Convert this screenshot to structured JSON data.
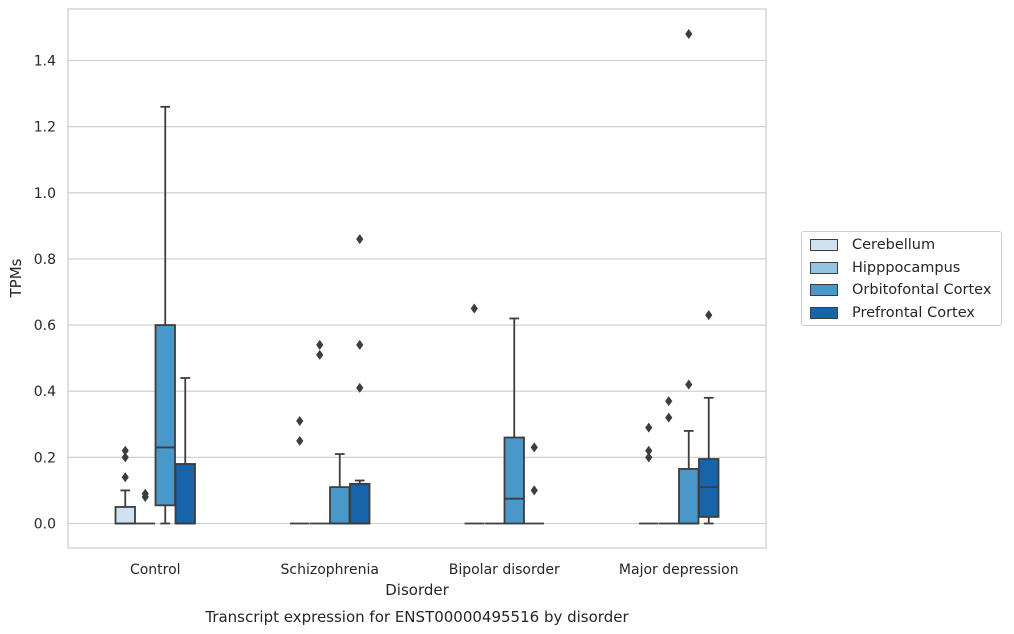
{
  "chart_data": {
    "type": "box",
    "caption": "Transcript expression for ENST00000495516 by disorder",
    "xlabel": "Disorder",
    "ylabel": "TPMs",
    "ylim": [
      -0.07,
      1.55
    ],
    "yticks": [
      0.0,
      0.2,
      0.4,
      0.6,
      0.8,
      1.0,
      1.2,
      1.4
    ],
    "ytick_labels": [
      "0.0",
      "0.2",
      "0.4",
      "0.6",
      "0.8",
      "1.0",
      "1.2",
      "1.4"
    ],
    "grid": "horizontal",
    "legend_placement": "right",
    "categories": [
      "Control",
      "Schizophrenia",
      "Bipolar disorder",
      "Major depression"
    ],
    "series": [
      {
        "name": "Cerebellum",
        "color": "#d0e1f2",
        "boxes": [
          {
            "q1": 0.0,
            "median": 0.0,
            "q3": 0.05,
            "whisker_low": 0.0,
            "whisker_high": 0.1,
            "outliers": [
              0.14,
              0.2,
              0.22
            ]
          },
          {
            "q1": 0.0,
            "median": 0.0,
            "q3": 0.0,
            "whisker_low": 0.0,
            "whisker_high": 0.0,
            "outliers": [
              0.25,
              0.31
            ]
          },
          {
            "q1": 0.0,
            "median": 0.0,
            "q3": 0.0,
            "whisker_low": 0.0,
            "whisker_high": 0.0,
            "outliers": [
              0.65
            ]
          },
          {
            "q1": 0.0,
            "median": 0.0,
            "q3": 0.0,
            "whisker_low": 0.0,
            "whisker_high": 0.0,
            "outliers": [
              0.2,
              0.22,
              0.29
            ]
          }
        ]
      },
      {
        "name": "Hipppocampus",
        "color": "#94c4df",
        "boxes": [
          {
            "q1": 0.0,
            "median": 0.0,
            "q3": 0.0,
            "whisker_low": 0.0,
            "whisker_high": 0.0,
            "outliers": [
              0.08,
              0.09
            ]
          },
          {
            "q1": 0.0,
            "median": 0.0,
            "q3": 0.0,
            "whisker_low": 0.0,
            "whisker_high": 0.0,
            "outliers": [
              0.51,
              0.54
            ]
          },
          {
            "q1": 0.0,
            "median": 0.0,
            "q3": 0.0,
            "whisker_low": 0.0,
            "whisker_high": 0.0,
            "outliers": []
          },
          {
            "q1": 0.0,
            "median": 0.0,
            "q3": 0.0,
            "whisker_low": 0.0,
            "whisker_high": 0.0,
            "outliers": [
              0.32,
              0.37
            ]
          }
        ]
      },
      {
        "name": "Orbitofontal Cortex",
        "color": "#4a98c9",
        "boxes": [
          {
            "q1": 0.055,
            "median": 0.23,
            "q3": 0.6,
            "whisker_low": 0.0,
            "whisker_high": 1.26,
            "outliers": []
          },
          {
            "q1": 0.0,
            "median": 0.0,
            "q3": 0.11,
            "whisker_low": 0.0,
            "whisker_high": 0.21,
            "outliers": []
          },
          {
            "q1": 0.0,
            "median": 0.075,
            "q3": 0.26,
            "whisker_low": 0.0,
            "whisker_high": 0.62,
            "outliers": []
          },
          {
            "q1": 0.0,
            "median": 0.0,
            "q3": 0.165,
            "whisker_low": 0.0,
            "whisker_high": 0.28,
            "outliers": [
              0.42,
              1.48
            ]
          }
        ]
      },
      {
        "name": "Prefrontal Cortex",
        "color": "#1764ab",
        "boxes": [
          {
            "q1": 0.0,
            "median": 0.0,
            "q3": 0.18,
            "whisker_low": 0.0,
            "whisker_high": 0.44,
            "outliers": []
          },
          {
            "q1": 0.0,
            "median": 0.0,
            "q3": 0.12,
            "whisker_low": 0.0,
            "whisker_high": 0.13,
            "outliers": [
              0.41,
              0.54,
              0.86
            ]
          },
          {
            "q1": 0.0,
            "median": 0.0,
            "q3": 0.0,
            "whisker_low": 0.0,
            "whisker_high": 0.0,
            "outliers": [
              0.1,
              0.23
            ]
          },
          {
            "q1": 0.02,
            "median": 0.11,
            "q3": 0.195,
            "whisker_low": 0.0,
            "whisker_high": 0.38,
            "outliers": [
              0.63
            ]
          }
        ]
      }
    ]
  }
}
